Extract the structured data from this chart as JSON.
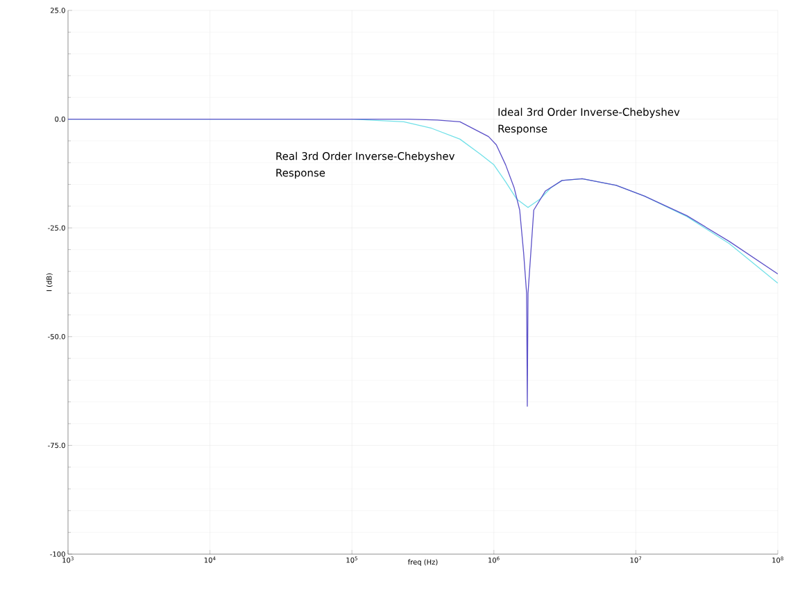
{
  "chart_data": {
    "type": "line",
    "xlabel": "freq (Hz)",
    "ylabel": "I (dB)",
    "log": "x",
    "grid": true,
    "marker": "none",
    "line_style": "solid",
    "xlim": [
      1000,
      100000000
    ],
    "ylim": [
      -100,
      25
    ],
    "xticks": [
      {
        "value": 1000,
        "label": "10$^{3}$"
      },
      {
        "value": 10000,
        "label": "10$^{4}$"
      },
      {
        "value": 100000,
        "label": "10$^{5}$"
      },
      {
        "value": 1000000,
        "label": "10$^{6}$"
      },
      {
        "value": 10000000,
        "label": "10$^{7}$"
      },
      {
        "value": 100000000,
        "label": "10$^{8}$"
      }
    ],
    "yticks": [
      {
        "value": 25,
        "label": "25.0"
      },
      {
        "value": 0,
        "label": "0.0"
      },
      {
        "value": -25,
        "label": "-25.0"
      },
      {
        "value": -50,
        "label": "-50.0"
      },
      {
        "value": -75,
        "label": "-75.0"
      },
      -100
    ],
    "series": [
      {
        "name": "Ideal 3rd Order Inverse-Chebyshev Response",
        "color": "#5b50c8",
        "x": [
          1000,
          100000,
          250000,
          400000,
          577000,
          916000,
          1040000,
          1210000,
          1390000,
          1520000,
          1620000,
          1700000,
          1720000,
          1740000,
          1910000,
          2310000,
          3020000,
          4190000,
          7270000,
          11500000,
          22900000,
          45500000,
          100000000
        ],
        "values": [
          0,
          0,
          0,
          -0.2,
          -0.6,
          -4.0,
          -5.9,
          -10.5,
          -15.8,
          -20.9,
          -30.7,
          -40,
          -66,
          -40,
          -20.9,
          -16.5,
          -14.1,
          -13.7,
          -15.2,
          -17.7,
          -22.2,
          -28.1,
          -35.6
        ]
      },
      {
        "name": "Real 3rd Order Inverse-Chebyshev Response",
        "color": "#70e0e8",
        "x": [
          1000,
          100000,
          232000,
          364000,
          577000,
          800000,
          1000000,
          1210000,
          1450000,
          1740000,
          2110000,
          2520000,
          3020000,
          4190000,
          7270000,
          11500000,
          22900000,
          45500000,
          100000000
        ],
        "values": [
          0,
          0,
          -0.6,
          -2.1,
          -4.6,
          -8,
          -10.5,
          -14.4,
          -18.4,
          -20.3,
          -18.4,
          -15.8,
          -14.1,
          -13.7,
          -15.2,
          -17.7,
          -22.4,
          -28.6,
          -37.7
        ]
      }
    ]
  }
}
